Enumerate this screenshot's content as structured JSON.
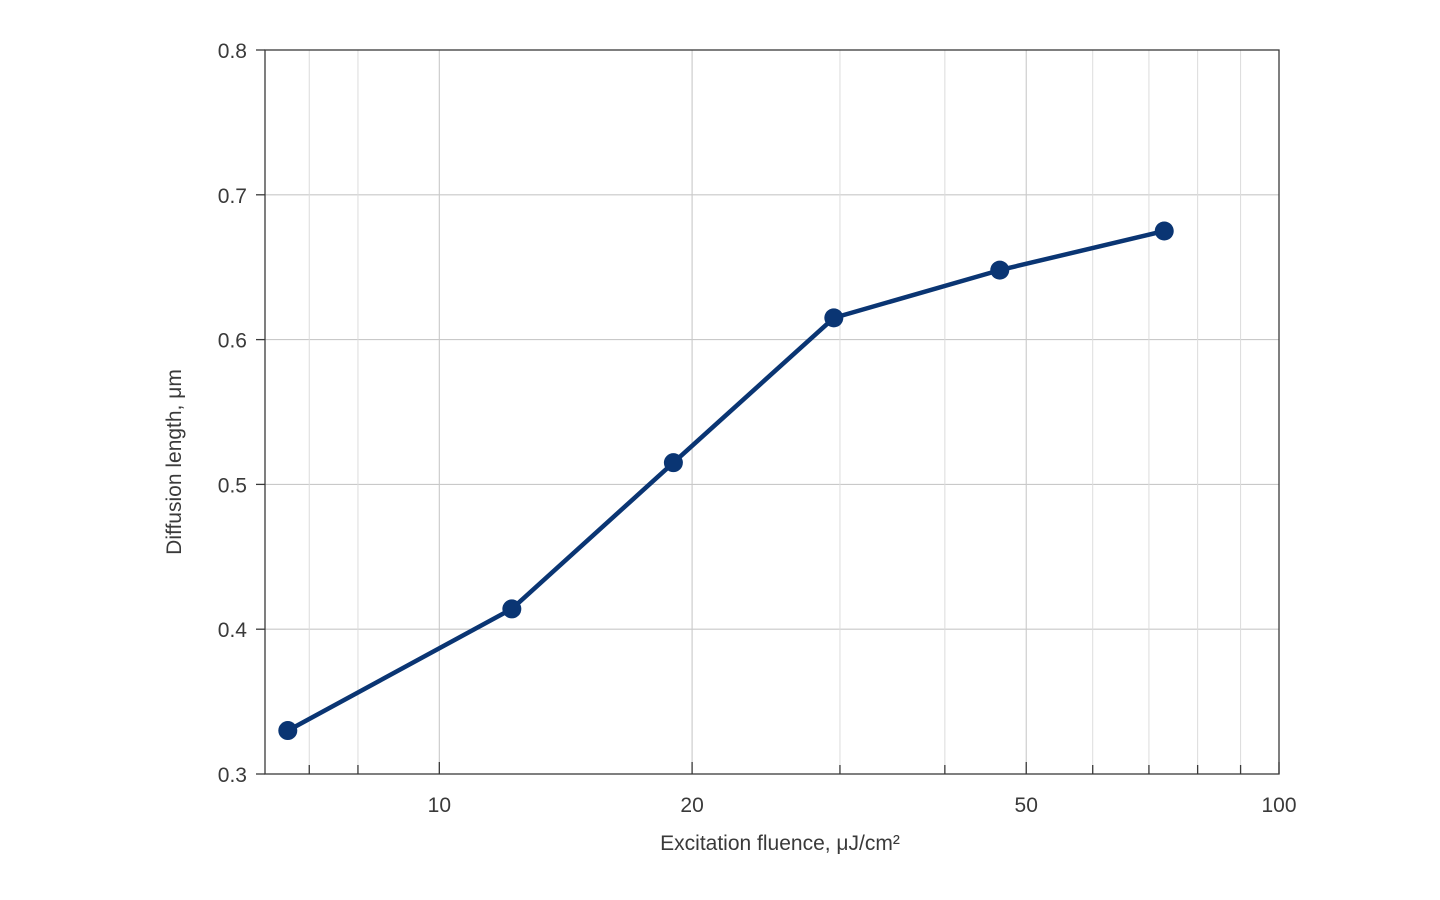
{
  "chart_data": {
    "type": "line",
    "title": "",
    "xlabel": "Excitation fluence, μJ/cm²",
    "ylabel": "Diffusion length, μm",
    "x_scale": "log",
    "xlim": [
      6.2,
      100
    ],
    "ylim": [
      0.3,
      0.8
    ],
    "x_major_ticks": [
      10,
      20,
      50,
      100
    ],
    "x_minor_ticks": [
      7,
      8,
      30,
      40,
      60,
      70,
      80,
      90
    ],
    "y_ticks": [
      0.3,
      0.4,
      0.5,
      0.6,
      0.7,
      0.8
    ],
    "grid": true,
    "series": [
      {
        "color": "#0a3573",
        "points": [
          {
            "x": 6.6,
            "y": 0.33
          },
          {
            "x": 12.2,
            "y": 0.414
          },
          {
            "x": 19.0,
            "y": 0.515
          },
          {
            "x": 29.5,
            "y": 0.615
          },
          {
            "x": 46.5,
            "y": 0.648
          },
          {
            "x": 73.0,
            "y": 0.675
          }
        ]
      }
    ]
  }
}
